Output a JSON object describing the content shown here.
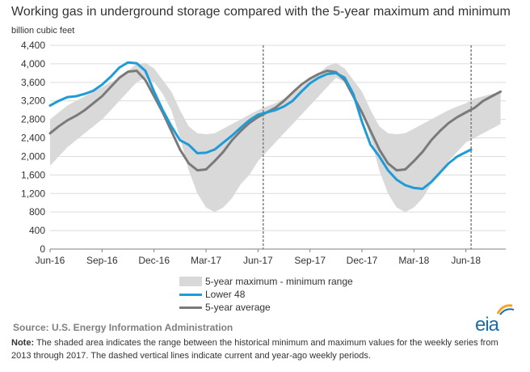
{
  "chart_data": {
    "type": "line",
    "title": "Working gas in underground storage compared with the 5-year maximum and minimum",
    "ylabel": "billion cubic feet",
    "ylim": [
      0,
      4400
    ],
    "yticks": [
      "0",
      "400",
      "800",
      "1,200",
      "1,600",
      "2,000",
      "2,400",
      "2,800",
      "3,200",
      "3,600",
      "4,000",
      "4,400"
    ],
    "xticks": [
      "Jun-16",
      "Sep-16",
      "Dec-16",
      "Mar-17",
      "Jun-17",
      "Sep-17",
      "Dec-17",
      "Mar-18",
      "Jun-18"
    ],
    "grid": true,
    "legend_placement": "bottom",
    "vlines": [
      "year-ago week (Jun-17)",
      "current week (Jun-18)"
    ],
    "range_band": {
      "name": "5-year maximum - minimum range",
      "x": [
        0,
        0.5,
        1,
        1.5,
        2,
        2.5,
        3,
        3.5,
        4,
        4.5,
        5,
        5.5,
        6,
        6.5,
        7,
        7.5,
        8,
        8.5,
        9,
        9.5,
        10,
        10.5,
        11,
        11.5,
        12,
        12.5,
        13,
        13.5,
        14,
        14.5,
        15,
        15.5,
        16,
        16.5,
        17,
        17.5,
        18,
        18.5,
        19,
        19.5,
        20,
        20.5,
        21,
        21.5,
        22,
        22.5,
        23,
        23.5,
        24,
        24.5,
        25,
        25.5,
        26
      ],
      "max": [
        2800,
        2950,
        3100,
        3200,
        3300,
        3400,
        3500,
        3600,
        3700,
        3850,
        4000,
        4020,
        3900,
        3650,
        3400,
        3000,
        2650,
        2500,
        2480,
        2500,
        2600,
        2700,
        2800,
        2900,
        3000,
        3080,
        3150,
        3250,
        3350,
        3500,
        3650,
        3800,
        3950,
        4020,
        3900,
        3650,
        3400,
        3000,
        2650,
        2500,
        2480,
        2500,
        2600,
        2700,
        2800,
        2900,
        3000,
        3080,
        3150,
        3250,
        3300,
        3350,
        3380
      ],
      "min": [
        1800,
        2000,
        2200,
        2350,
        2500,
        2650,
        2800,
        3000,
        3200,
        3400,
        3600,
        3700,
        3600,
        3350,
        3000,
        2400,
        1700,
        1200,
        900,
        800,
        900,
        1100,
        1400,
        1600,
        1900,
        2100,
        2300,
        2500,
        2700,
        2900,
        3100,
        3300,
        3500,
        3700,
        3600,
        3350,
        3000,
        2400,
        1700,
        1200,
        900,
        800,
        900,
        1100,
        1400,
        1600,
        1900,
        2100,
        2300,
        2400,
        2500,
        2600,
        2700
      ]
    },
    "series": [
      {
        "name": "Lower 48",
        "color": "#1f9bd7",
        "x": [
          0,
          0.5,
          1,
          1.5,
          2,
          2.5,
          3,
          3.5,
          4,
          4.5,
          5,
          5.5,
          6,
          6.5,
          7,
          7.5,
          8,
          8.5,
          9,
          9.5,
          10,
          10.5,
          11,
          11.5,
          12,
          12.5,
          13,
          13.5,
          14,
          14.5,
          15,
          15.5,
          16,
          16.5,
          17,
          17.5,
          18,
          18.5,
          19,
          19.5,
          20,
          20.5,
          21,
          21.5,
          22,
          22.5,
          23,
          23.5,
          24.3
        ],
        "values": [
          3100,
          3200,
          3280,
          3300,
          3350,
          3420,
          3550,
          3720,
          3920,
          4030,
          4010,
          3850,
          3400,
          3000,
          2650,
          2350,
          2250,
          2070,
          2080,
          2150,
          2300,
          2450,
          2620,
          2780,
          2900,
          2950,
          3000,
          3080,
          3200,
          3400,
          3580,
          3700,
          3780,
          3800,
          3700,
          3350,
          2750,
          2250,
          2000,
          1700,
          1500,
          1380,
          1320,
          1300,
          1450,
          1650,
          1850,
          2000,
          2150
        ]
      },
      {
        "name": "5-year average",
        "color": "#7a7a7a",
        "x": [
          0,
          0.5,
          1,
          1.5,
          2,
          2.5,
          3,
          3.5,
          4,
          4.5,
          5,
          5.5,
          6,
          6.5,
          7,
          7.5,
          8,
          8.5,
          9,
          9.5,
          10,
          10.5,
          11,
          11.5,
          12,
          12.5,
          13,
          13.5,
          14,
          14.5,
          15,
          15.5,
          16,
          16.5,
          17,
          17.5,
          18,
          18.5,
          19,
          19.5,
          20,
          20.5,
          21,
          21.5,
          22,
          22.5,
          23,
          23.5,
          24,
          24.5,
          25,
          25.5,
          26
        ],
        "values": [
          2500,
          2650,
          2780,
          2880,
          3000,
          3150,
          3300,
          3500,
          3700,
          3830,
          3850,
          3650,
          3300,
          2950,
          2550,
          2150,
          1850,
          1700,
          1720,
          1900,
          2100,
          2350,
          2550,
          2720,
          2850,
          2950,
          3050,
          3200,
          3380,
          3550,
          3680,
          3780,
          3850,
          3820,
          3650,
          3300,
          2950,
          2550,
          2150,
          1850,
          1700,
          1720,
          1900,
          2100,
          2350,
          2550,
          2720,
          2850,
          2950,
          3050,
          3200,
          3300,
          3400
        ]
      }
    ]
  },
  "legend": {
    "range": "5-year maximum - minimum range",
    "lower48": "Lower 48",
    "avg": "5-year average"
  },
  "source": "Source:  U.S. Energy Information Administration",
  "note_label": "Note:",
  "note_text": " The shaded area indicates the range between the historical minimum and maximum values for the weekly series from 2013 through 2017. The dashed vertical lines indicate current and year-ago weekly periods.",
  "logo": {
    "text": "eia",
    "color": "#1a6fa8",
    "accent": "#f5a623"
  }
}
